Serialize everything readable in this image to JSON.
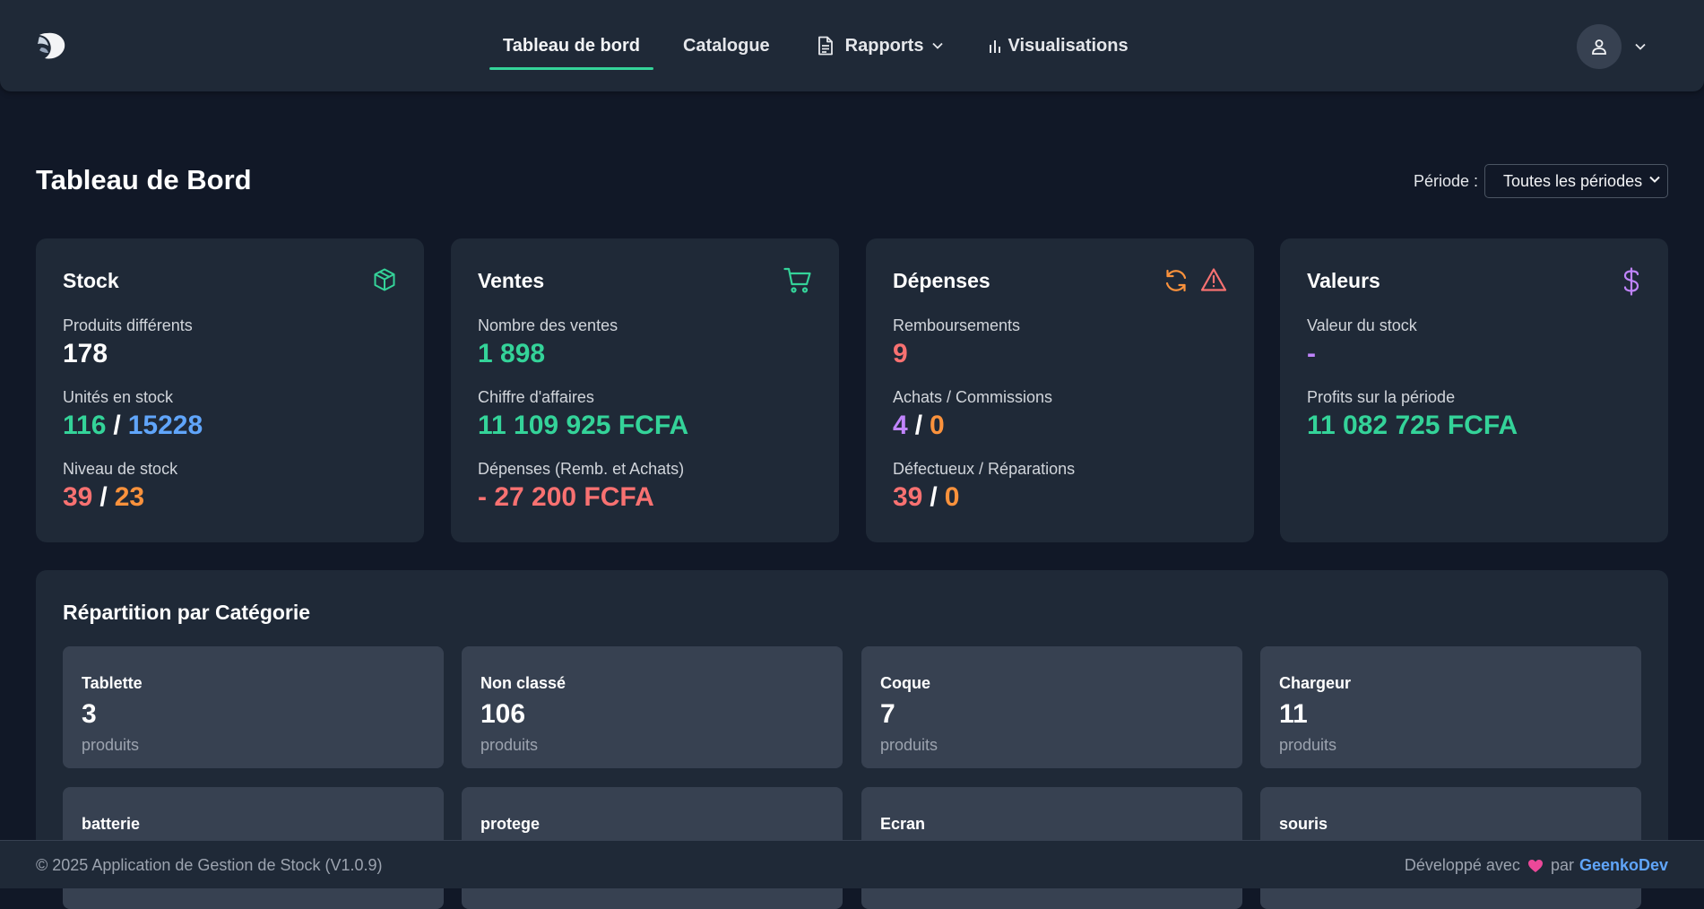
{
  "nav": {
    "links": [
      {
        "label": "Tableau de bord",
        "active": true
      },
      {
        "label": "Catalogue"
      },
      {
        "label": "Rapports"
      },
      {
        "label": "Visualisations"
      }
    ],
    "logo_icon": "logo-icon",
    "user_icon": "user-icon"
  },
  "page": {
    "title": "Tableau de Bord",
    "period_label": "Période :",
    "period_value": "Toutes les périodes"
  },
  "cards": {
    "stock": {
      "title": "Stock",
      "icon": "box-icon",
      "products_label": "Produits différents",
      "products_value": "178",
      "units_label": "Unités en stock",
      "units_a": "116",
      "units_b": "15228",
      "level_label": "Niveau de stock",
      "level_a": "39",
      "level_b": "23"
    },
    "sales": {
      "title": "Ventes",
      "icon": "cart-icon",
      "count_label": "Nombre des ventes",
      "count_value": "1 898",
      "revenue_label": "Chiffre d'affaires",
      "revenue_value": "11 109 925 FCFA",
      "expenses_label": "Dépenses (Remb. et Achats)",
      "expenses_value": "- 27 200 FCFA"
    },
    "expenses": {
      "title": "Dépenses",
      "icons": [
        "refresh-icon",
        "warning-icon"
      ],
      "refunds_label": "Remboursements",
      "refunds_value": "9",
      "purchases_label": "Achats / Commissions",
      "purchases_a": "4",
      "purchases_b": "0",
      "defects_label": "Défectueux / Réparations",
      "defects_a": "39",
      "defects_b": "0"
    },
    "values": {
      "title": "Valeurs",
      "icon": "dollar-icon",
      "stock_value_label": "Valeur du stock",
      "stock_value": "-",
      "profits_label": "Profits sur la période",
      "profits_value": "11 082 725 FCFA"
    }
  },
  "categories": {
    "title": "Répartition par Catégorie",
    "unit": "produits",
    "items": [
      {
        "name": "Tablette",
        "count": "3"
      },
      {
        "name": "Non classé",
        "count": "106"
      },
      {
        "name": "Coque",
        "count": "7"
      },
      {
        "name": "Chargeur",
        "count": "11"
      },
      {
        "name": "batterie",
        "count": ""
      },
      {
        "name": "protege",
        "count": ""
      },
      {
        "name": "Ecran",
        "count": ""
      },
      {
        "name": "souris",
        "count": ""
      }
    ]
  },
  "footer": {
    "copyright": "© 2025 Application de Gestion de Stock (V1.0.9)",
    "dev_prefix": "Développé avec",
    "dev_by": "par",
    "dev_name": "GeenkoDev"
  },
  "colors": {
    "background": "#111827",
    "surface": "#1f2937",
    "tile": "#374151",
    "green": "#34d399",
    "blue": "#60a5fa",
    "red": "#f87171",
    "orange": "#fb923c",
    "purple": "#c084fc"
  }
}
